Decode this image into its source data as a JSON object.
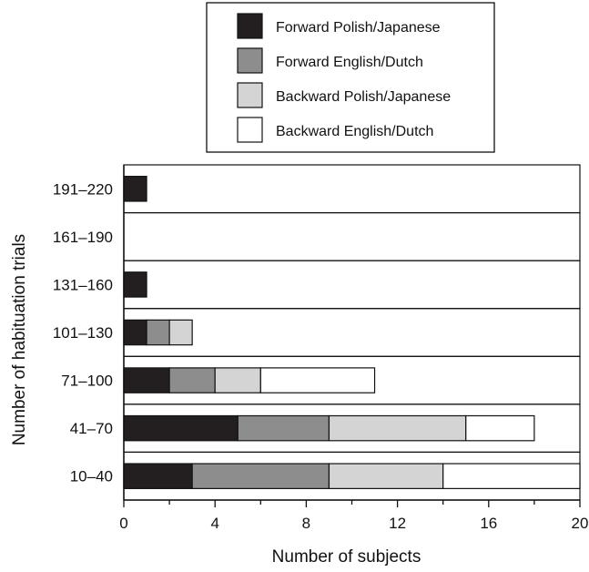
{
  "chart_data": {
    "type": "bar",
    "orientation": "horizontal",
    "stacked": true,
    "categories": [
      "10–40",
      "41–70",
      "71–100",
      "101–130",
      "131–160",
      "161–190",
      "191–220"
    ],
    "series": [
      {
        "name": "Forward Polish/Japanese",
        "color": "#231f20",
        "values": [
          3,
          5,
          2,
          1,
          1,
          0,
          1
        ]
      },
      {
        "name": "Forward English/Dutch",
        "color": "#8d8d8d",
        "values": [
          6,
          4,
          2,
          1,
          0,
          0,
          0
        ]
      },
      {
        "name": "Backward Polish/Japanese",
        "color": "#d4d4d4",
        "values": [
          5,
          6,
          2,
          1,
          0,
          0,
          0
        ]
      },
      {
        "name": "Backward English/Dutch",
        "color": "#ffffff",
        "values": [
          6,
          3,
          5,
          0,
          0,
          0,
          0
        ]
      }
    ],
    "xlabel": "Number of subjects",
    "ylabel": "Number of habituation trials",
    "xlim": [
      0,
      20
    ],
    "xticks": [
      0,
      4,
      8,
      12,
      16,
      20
    ],
    "grid": false,
    "legend_position": "top"
  }
}
